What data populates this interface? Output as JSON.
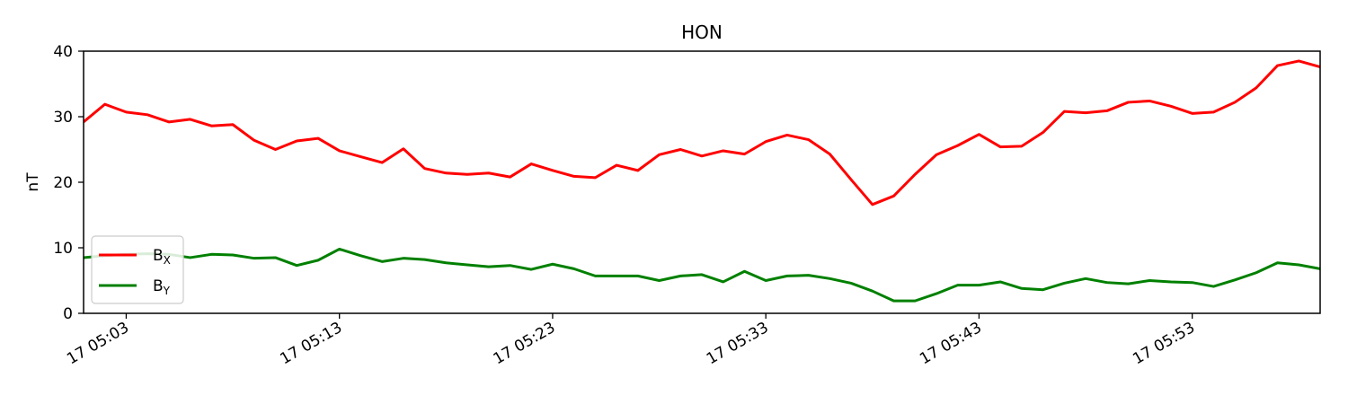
{
  "chart_data": {
    "type": "line",
    "title": "HON",
    "ylabel": "nT",
    "xlabel": "",
    "ylim": [
      0,
      40
    ],
    "yticks": [
      0,
      10,
      20,
      30,
      40
    ],
    "xrange_minutes": [
      1.0,
      59.0
    ],
    "xtick_minutes": [
      3,
      13,
      23,
      33,
      43,
      53
    ],
    "xtick_labels": [
      "17 05:03",
      "17 05:13",
      "17 05:23",
      "17 05:33",
      "17 05:43",
      "17 05:53"
    ],
    "grid": false,
    "legend_position": "lower-left",
    "series": [
      {
        "name": "B",
        "name_sub": "X",
        "color": "#ff0000",
        "x": [
          1,
          2,
          3,
          4,
          5,
          6,
          7,
          8,
          9,
          10,
          11,
          12,
          13,
          14,
          15,
          16,
          17,
          18,
          19,
          20,
          21,
          22,
          23,
          24,
          25,
          26,
          27,
          28,
          29,
          30,
          31,
          32,
          33,
          34,
          35,
          36,
          37,
          38,
          39,
          40,
          41,
          42,
          43,
          44,
          45,
          46,
          47,
          48,
          49,
          50,
          51,
          52,
          53,
          54,
          55,
          56,
          57,
          58,
          59
        ],
        "values": [
          29.2,
          31.9,
          30.7,
          30.3,
          29.2,
          29.6,
          28.6,
          28.8,
          26.4,
          25.0,
          26.3,
          26.7,
          24.8,
          23.9,
          23.0,
          25.1,
          22.1,
          21.4,
          21.2,
          21.4,
          20.8,
          22.8,
          21.8,
          20.9,
          20.7,
          22.6,
          21.8,
          24.2,
          25.0,
          24.0,
          24.8,
          24.3,
          26.2,
          27.2,
          26.5,
          24.3,
          20.4,
          16.6,
          17.9,
          21.2,
          24.2,
          25.6,
          27.3,
          25.4,
          25.5,
          27.6,
          30.8,
          30.6,
          30.9,
          32.2,
          32.4,
          31.6,
          30.5,
          30.7,
          32.2,
          34.4,
          37.8,
          38.5,
          37.6
        ]
      },
      {
        "name": "B",
        "name_sub": "Y",
        "color": "#008000",
        "x": [
          1,
          2,
          3,
          4,
          5,
          6,
          7,
          8,
          9,
          10,
          11,
          12,
          13,
          14,
          15,
          16,
          17,
          18,
          19,
          20,
          21,
          22,
          23,
          24,
          25,
          26,
          27,
          28,
          29,
          30,
          31,
          32,
          33,
          34,
          35,
          36,
          37,
          38,
          39,
          40,
          41,
          42,
          43,
          44,
          45,
          46,
          47,
          48,
          49,
          50,
          51,
          52,
          53,
          54,
          55,
          56,
          57,
          58,
          59
        ],
        "values": [
          8.5,
          8.8,
          9.0,
          9.1,
          9.0,
          8.5,
          9.0,
          8.9,
          8.4,
          8.5,
          7.3,
          8.1,
          9.8,
          8.8,
          7.9,
          8.4,
          8.2,
          7.7,
          7.4,
          7.1,
          7.3,
          6.7,
          7.5,
          6.8,
          5.7,
          5.7,
          5.7,
          5.0,
          5.7,
          5.9,
          4.8,
          6.4,
          5.0,
          5.7,
          5.8,
          5.3,
          4.6,
          3.4,
          1.9,
          1.9,
          3.0,
          4.3,
          4.3,
          4.8,
          3.8,
          3.6,
          4.6,
          5.3,
          4.7,
          4.5,
          5.0,
          4.8,
          4.7,
          4.1,
          5.1,
          6.2,
          7.7,
          7.4,
          6.8
        ]
      }
    ]
  }
}
